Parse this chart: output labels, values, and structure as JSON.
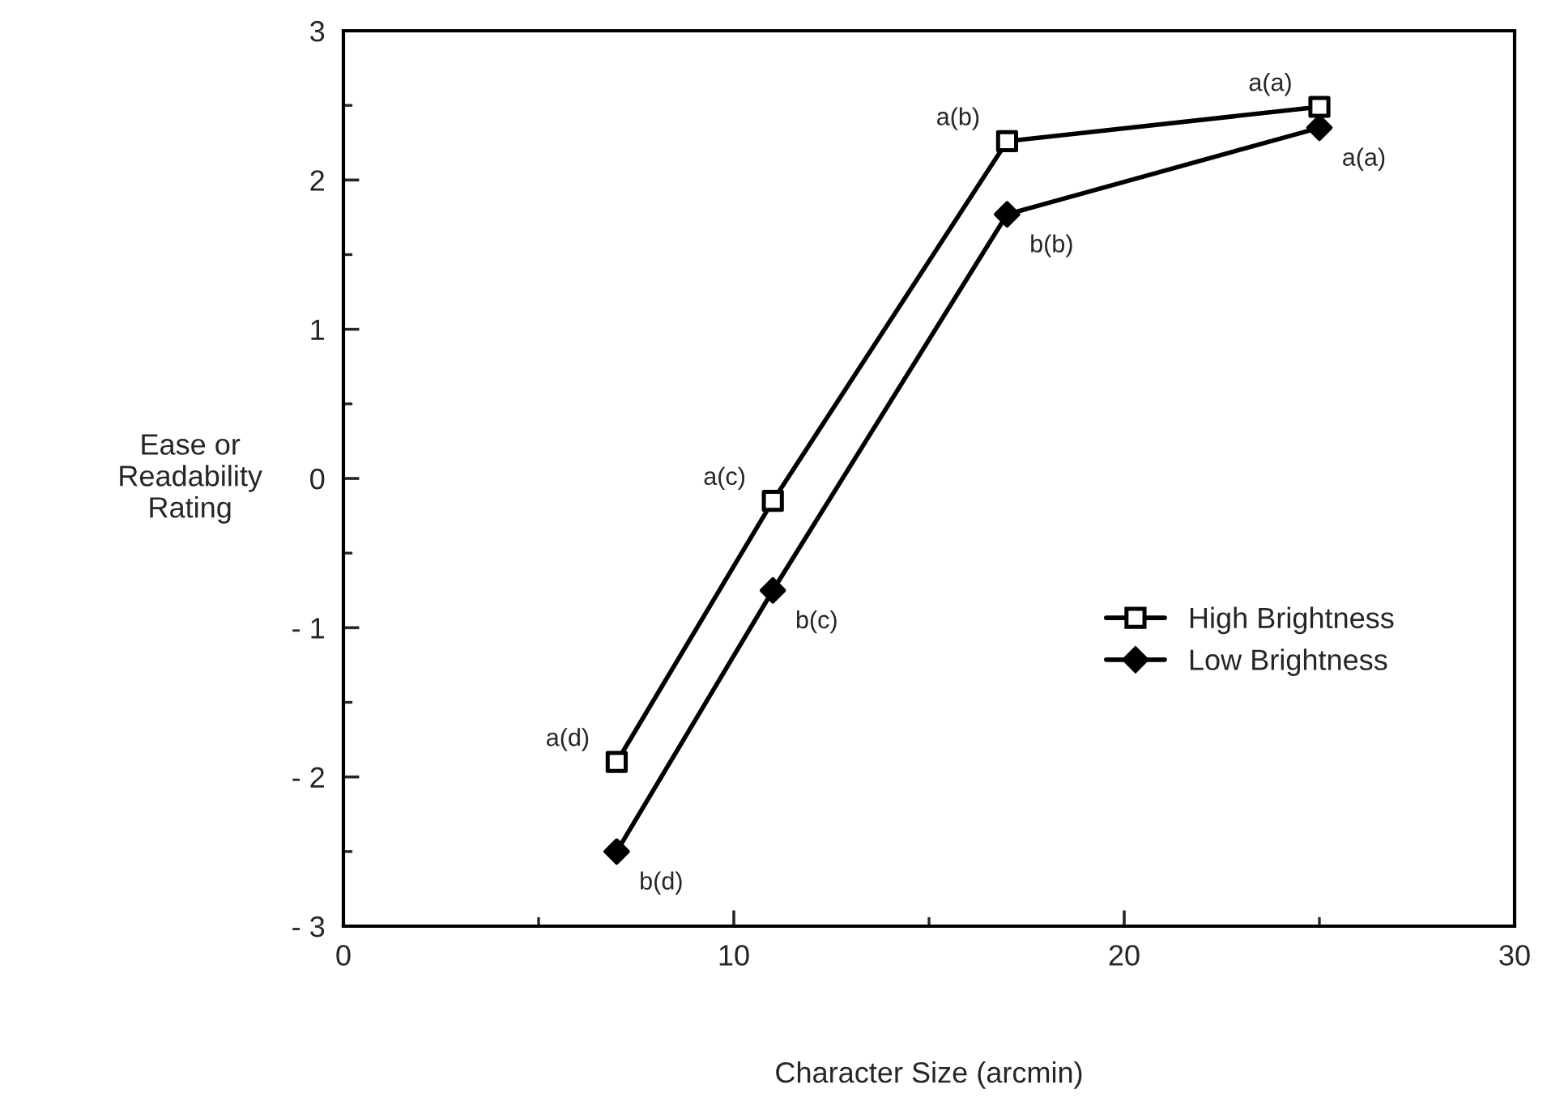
{
  "chart_data": {
    "type": "line",
    "xlabel": "Character Size (arcmin)",
    "ylabel": "Ease or\nReadability\nRating",
    "series": [
      {
        "name": "High Brightness",
        "color": "#000000",
        "marker": "square",
        "x": [
          7,
          11,
          17,
          25
        ],
        "values": [
          -1.9,
          -0.15,
          2.26,
          2.49
        ]
      },
      {
        "name": "Low Brightness",
        "color": "#000000",
        "marker": "diamond",
        "x": [
          7,
          11,
          17,
          25
        ],
        "values": [
          -2.5,
          -0.75,
          1.77,
          2.35
        ]
      }
    ],
    "annotations": [
      {
        "text": "a(d)",
        "x": 7,
        "y": -1.9
      },
      {
        "text": "a(c)",
        "x": 11,
        "y": -0.15
      },
      {
        "text": "a(b)",
        "x": 17,
        "y": 2.26
      },
      {
        "text": "a(a)",
        "x": 25,
        "y": 2.49
      },
      {
        "text": "b(d)",
        "x": 7,
        "y": -2.5
      },
      {
        "text": "b(c)",
        "x": 11,
        "y": -0.75
      },
      {
        "text": "b(b)",
        "x": 17,
        "y": 1.77
      },
      {
        "text": "a(a)",
        "x": 25,
        "y": 2.35
      }
    ],
    "xlim": [
      0,
      30
    ],
    "xticks": [
      0,
      10,
      20,
      30
    ],
    "ylim": [
      -3,
      3
    ],
    "yticks": [
      {
        "value": -3,
        "label": "- 3"
      },
      {
        "value": -2,
        "label": "- 2"
      },
      {
        "value": -1,
        "label": "- 1"
      },
      0,
      1,
      2,
      3
    ],
    "grid": false,
    "legend": "lower right",
    "line_style": "solid"
  }
}
